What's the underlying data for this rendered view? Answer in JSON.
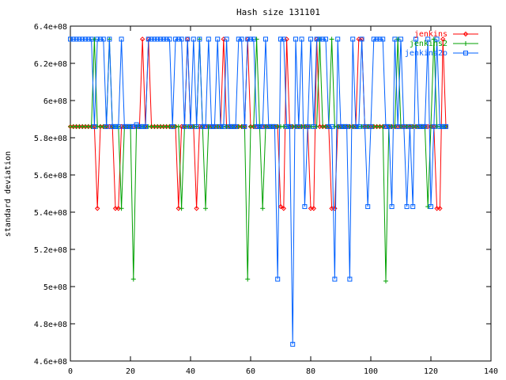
{
  "chart_data": {
    "type": "line",
    "title": "Hash size 131101",
    "xlabel": "",
    "ylabel": "standard deviation",
    "xlim": [
      0,
      140
    ],
    "ylim": [
      460000000,
      640000000
    ],
    "x_ticks": [
      0,
      20,
      40,
      60,
      80,
      100,
      120,
      140
    ],
    "x_tick_labels": [
      "0",
      "20",
      "40",
      "60",
      "80",
      "100",
      "120",
      "140"
    ],
    "y_ticks": [
      460000000,
      480000000,
      500000000,
      520000000,
      540000000,
      560000000,
      580000000,
      600000000,
      620000000,
      640000000
    ],
    "y_tick_labels": [
      "4.6e+08",
      "4.8e+08",
      "5e+08",
      "5.2e+08",
      "5.4e+08",
      "5.6e+08",
      "5.8e+08",
      "6e+08",
      "6.2e+08",
      "6.4e+08"
    ],
    "grid": false,
    "legend_position": "top-right",
    "x": [
      0,
      1,
      2,
      3,
      4,
      5,
      6,
      7,
      8,
      9,
      10,
      11,
      12,
      13,
      14,
      15,
      16,
      17,
      18,
      19,
      20,
      21,
      22,
      23,
      24,
      25,
      26,
      27,
      28,
      29,
      30,
      31,
      32,
      33,
      34,
      35,
      36,
      37,
      38,
      39,
      40,
      41,
      42,
      43,
      44,
      45,
      46,
      47,
      48,
      49,
      50,
      51,
      52,
      53,
      54,
      55,
      56,
      57,
      58,
      59,
      60,
      61,
      62,
      63,
      64,
      65,
      66,
      67,
      68,
      69,
      70,
      71,
      72,
      73,
      74,
      75,
      76,
      77,
      78,
      79,
      80,
      81,
      82,
      83,
      84,
      85,
      86,
      87,
      88,
      89,
      90,
      91,
      92,
      93,
      94,
      95,
      96,
      97,
      98,
      99,
      100,
      101,
      102,
      103,
      104,
      105,
      106,
      107,
      108,
      109,
      110,
      111,
      112,
      113,
      114,
      115,
      116,
      117,
      118,
      119,
      120,
      121,
      122,
      123,
      124,
      125
    ],
    "series": [
      {
        "name": "jenkins",
        "color": "#ff0000",
        "marker": "diamond",
        "values": [
          586,
          586,
          586,
          586,
          586,
          586,
          586,
          586,
          586,
          542,
          586,
          586,
          586,
          586,
          586,
          542,
          542,
          586,
          586,
          586,
          586,
          586,
          586,
          586,
          633,
          586,
          633,
          586,
          586,
          586,
          586,
          586,
          586,
          586,
          586,
          586,
          542,
          586,
          586,
          633,
          586,
          586,
          542,
          586,
          586,
          586,
          586,
          586,
          586,
          586,
          586,
          633,
          586,
          586,
          586,
          586,
          586,
          586,
          586,
          633,
          586,
          586,
          586,
          586,
          586,
          586,
          586,
          586,
          586,
          586,
          543,
          542,
          633,
          586,
          586,
          586,
          586,
          586,
          586,
          586,
          542,
          542,
          633,
          586,
          586,
          586,
          586,
          542,
          542,
          586,
          586,
          586,
          586,
          586,
          586,
          586,
          633,
          633,
          586,
          586,
          586,
          586,
          586,
          586,
          586,
          586,
          586,
          586,
          586,
          586,
          586,
          586,
          586,
          586,
          586,
          586,
          586,
          586,
          586,
          586,
          586,
          586,
          542,
          542,
          633,
          586
        ]
      },
      {
        "name": "jenkins2",
        "color": "#00a000",
        "marker": "plus",
        "values": [
          586,
          586,
          586,
          586,
          586,
          586,
          586,
          586,
          633,
          586,
          586,
          586,
          586,
          633,
          586,
          586,
          586,
          542,
          586,
          586,
          586,
          504,
          586,
          586,
          586,
          586,
          586,
          586,
          586,
          586,
          586,
          586,
          586,
          586,
          586,
          586,
          586,
          542,
          586,
          586,
          586,
          586,
          586,
          633,
          586,
          542,
          586,
          586,
          586,
          586,
          586,
          586,
          586,
          586,
          586,
          586,
          586,
          586,
          586,
          504,
          586,
          586,
          633,
          586,
          542,
          586,
          586,
          586,
          586,
          586,
          586,
          586,
          586,
          586,
          586,
          586,
          586,
          586,
          586,
          586,
          586,
          586,
          586,
          633,
          586,
          586,
          586,
          633,
          586,
          586,
          586,
          586,
          586,
          586,
          586,
          586,
          586,
          586,
          586,
          586,
          586,
          586,
          586,
          586,
          586,
          503,
          586,
          586,
          586,
          633,
          586,
          586,
          586,
          586,
          586,
          586,
          586,
          586,
          586,
          543,
          586,
          633,
          586,
          586,
          586,
          586
        ]
      },
      {
        "name": "jenkins2o",
        "color": "#0060ff",
        "marker": "square",
        "values": [
          633,
          633,
          633,
          633,
          633,
          633,
          633,
          633,
          586,
          633,
          633,
          633,
          586,
          633,
          586,
          586,
          586,
          633,
          586,
          586,
          586,
          586,
          587,
          586,
          586,
          586,
          633,
          633,
          633,
          633,
          633,
          633,
          633,
          633,
          586,
          633,
          633,
          633,
          586,
          633,
          586,
          633,
          586,
          633,
          586,
          586,
          633,
          586,
          586,
          633,
          586,
          586,
          633,
          586,
          586,
          586,
          633,
          633,
          586,
          633,
          633,
          633,
          586,
          586,
          586,
          633,
          586,
          586,
          586,
          504,
          633,
          633,
          586,
          586,
          469,
          633,
          586,
          633,
          543,
          586,
          633,
          586,
          633,
          633,
          633,
          633,
          586,
          586,
          504,
          633,
          586,
          586,
          586,
          504,
          633,
          586,
          586,
          633,
          586,
          543,
          586,
          633,
          633,
          633,
          633,
          586,
          586,
          543,
          633,
          586,
          633,
          586,
          543,
          586,
          543,
          633,
          586,
          586,
          586,
          633,
          543,
          586,
          633,
          586,
          586,
          586
        ]
      }
    ]
  }
}
